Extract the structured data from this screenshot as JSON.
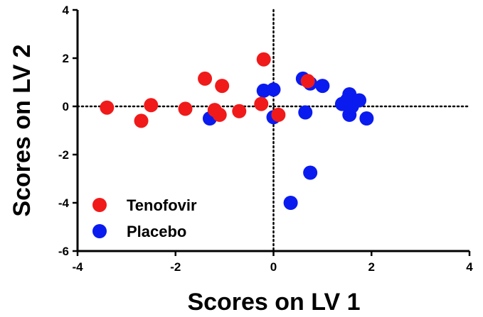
{
  "chart_data": {
    "type": "scatter",
    "title": "",
    "xlabel": "Scores on LV 1",
    "ylabel": "Scores on LV 2",
    "xlim": [
      -4,
      4
    ],
    "ylim": [
      -6,
      4
    ],
    "xticks": [
      "-4",
      "-2",
      "0",
      "2",
      "4"
    ],
    "yticks": [
      "-6",
      "-4",
      "-2",
      "0",
      "2",
      "4"
    ],
    "reference_lines": {
      "x": 0,
      "y": 0,
      "style": "dotted"
    },
    "grid": false,
    "legend_position": "bottom-left",
    "series": [
      {
        "name": "Placebo",
        "color": "#0a1bef",
        "points": [
          [
            -1.3,
            -0.5
          ],
          [
            -0.2,
            0.65
          ],
          [
            0.0,
            0.7
          ],
          [
            0.0,
            -0.45
          ],
          [
            0.6,
            1.15
          ],
          [
            0.65,
            -0.25
          ],
          [
            0.75,
            0.95
          ],
          [
            1.0,
            0.85
          ],
          [
            1.4,
            0.1
          ],
          [
            1.5,
            0.25
          ],
          [
            1.55,
            0.5
          ],
          [
            1.55,
            -0.35
          ],
          [
            1.6,
            0.0
          ],
          [
            1.75,
            0.25
          ],
          [
            1.9,
            -0.5
          ],
          [
            0.75,
            -2.75
          ],
          [
            0.35,
            -4.0
          ]
        ]
      },
      {
        "name": "Tenofovir",
        "color": "#f01a1a",
        "points": [
          [
            -3.4,
            -0.05
          ],
          [
            -2.7,
            -0.6
          ],
          [
            -2.5,
            0.05
          ],
          [
            -1.8,
            -0.1
          ],
          [
            -1.4,
            1.15
          ],
          [
            -1.2,
            -0.15
          ],
          [
            -1.1,
            -0.35
          ],
          [
            -1.05,
            0.85
          ],
          [
            -0.7,
            -0.2
          ],
          [
            -0.25,
            0.1
          ],
          [
            -0.2,
            1.95
          ],
          [
            0.1,
            -0.35
          ],
          [
            0.7,
            1.05
          ]
        ]
      }
    ],
    "legend": [
      "Tenofovir",
      "Placebo"
    ]
  }
}
